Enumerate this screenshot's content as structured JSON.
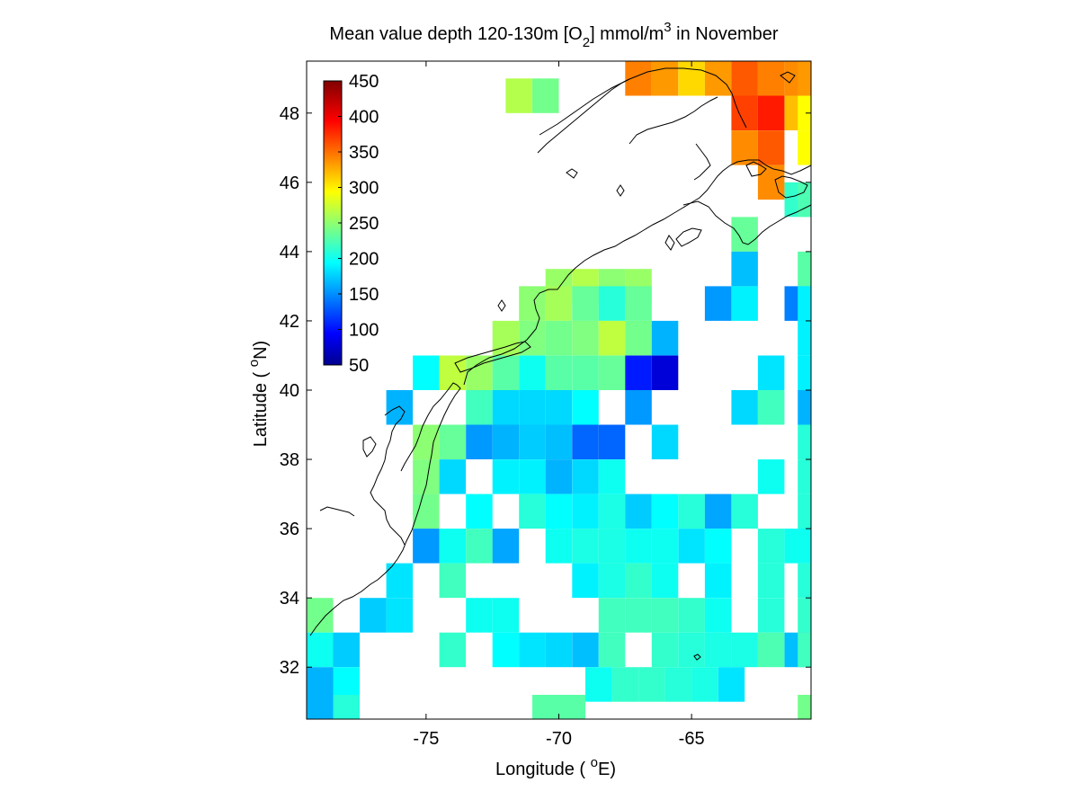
{
  "chart_data": {
    "type": "heatmap",
    "title": {
      "prefix": "Mean value depth 120-130m [O",
      "sub": "2",
      "middle": "] mmol/m",
      "sup": "3",
      "suffix": " in November"
    },
    "xlabel": {
      "prefix": "Longitude ( ",
      "sup": "o",
      "suffix": "E)"
    },
    "ylabel": {
      "prefix": "Latitude ( ",
      "sup": "o",
      "suffix": "N)"
    },
    "xlim": [
      -79.5,
      -60.5
    ],
    "ylim": [
      30.5,
      49.5
    ],
    "x_ticks": [
      -75,
      -70,
      -65
    ],
    "y_ticks": [
      32,
      34,
      36,
      38,
      40,
      42,
      44,
      46,
      48
    ],
    "cell_size_deg": 1,
    "colormap": "jet",
    "colorbar": {
      "min": 50,
      "max": 450,
      "ticks": [
        50,
        100,
        150,
        200,
        250,
        300,
        350,
        400,
        450
      ]
    },
    "cells": [
      [
        -67,
        49,
        350
      ],
      [
        -66,
        49,
        340
      ],
      [
        -65,
        49,
        315
      ],
      [
        -64,
        49,
        340
      ],
      [
        -63,
        49,
        365
      ],
      [
        -62,
        49,
        350
      ],
      [
        -61,
        49,
        345
      ],
      [
        -60.5,
        49,
        340
      ],
      [
        -71.5,
        48.5,
        270
      ],
      [
        -70.5,
        48.5,
        245
      ],
      [
        -63,
        48,
        375
      ],
      [
        -62,
        48,
        390
      ],
      [
        -61,
        48,
        325
      ],
      [
        -60.5,
        48,
        300
      ],
      [
        -63,
        47,
        345
      ],
      [
        -62,
        47,
        365
      ],
      [
        -60.5,
        47,
        300
      ],
      [
        -62,
        46,
        345
      ],
      [
        -61,
        45.5,
        220
      ],
      [
        -60.5,
        45.5,
        230
      ],
      [
        -63,
        44.5,
        240
      ],
      [
        -63,
        43.5,
        175
      ],
      [
        -60.5,
        43.5,
        235
      ],
      [
        -70,
        43,
        260
      ],
      [
        -69,
        43,
        270
      ],
      [
        -68,
        43,
        255
      ],
      [
        -67,
        43,
        260
      ],
      [
        -71,
        42.5,
        255
      ],
      [
        -70,
        42.5,
        265
      ],
      [
        -69,
        42.5,
        240
      ],
      [
        -68,
        42.5,
        215
      ],
      [
        -67,
        42.5,
        240
      ],
      [
        -64,
        42.5,
        160
      ],
      [
        -63,
        42.5,
        195
      ],
      [
        -61,
        42.5,
        150
      ],
      [
        -60.5,
        42.5,
        195
      ],
      [
        -72,
        41.5,
        265
      ],
      [
        -71,
        41.5,
        250
      ],
      [
        -70,
        41.5,
        245
      ],
      [
        -69,
        41.5,
        250
      ],
      [
        -68,
        41.5,
        275
      ],
      [
        -67,
        41.5,
        245
      ],
      [
        -66,
        41.5,
        170
      ],
      [
        -60.5,
        41.5,
        195
      ],
      [
        -75,
        40.5,
        200
      ],
      [
        -74,
        40.5,
        275
      ],
      [
        -73,
        40.5,
        260
      ],
      [
        -72,
        40.5,
        235
      ],
      [
        -71,
        40.5,
        205
      ],
      [
        -70,
        40.5,
        235
      ],
      [
        -69,
        40.5,
        235
      ],
      [
        -68,
        40.5,
        240
      ],
      [
        -67,
        40.5,
        110
      ],
      [
        -66,
        40.5,
        85
      ],
      [
        -62,
        40.5,
        190
      ],
      [
        -60.5,
        40.5,
        195
      ],
      [
        -76,
        39.5,
        170
      ],
      [
        -73,
        39.5,
        225
      ],
      [
        -72,
        39.5,
        185
      ],
      [
        -71,
        39.5,
        185
      ],
      [
        -70,
        39.5,
        185
      ],
      [
        -69,
        39.5,
        200
      ],
      [
        -67,
        39.5,
        160
      ],
      [
        -63,
        39.5,
        185
      ],
      [
        -62,
        39.5,
        225
      ],
      [
        -60.5,
        39.5,
        170
      ],
      [
        -75,
        38.5,
        255
      ],
      [
        -74,
        38.5,
        240
      ],
      [
        -73,
        38.5,
        160
      ],
      [
        -72,
        38.5,
        170
      ],
      [
        -71,
        38.5,
        180
      ],
      [
        -70,
        38.5,
        175
      ],
      [
        -69,
        38.5,
        140
      ],
      [
        -68,
        38.5,
        140
      ],
      [
        -66,
        38.5,
        185
      ],
      [
        -60.5,
        38.5,
        215
      ],
      [
        -75,
        37.5,
        250
      ],
      [
        -74,
        37.5,
        185
      ],
      [
        -72,
        37.5,
        195
      ],
      [
        -71,
        37.5,
        195
      ],
      [
        -70,
        37.5,
        170
      ],
      [
        -69,
        37.5,
        185
      ],
      [
        -68,
        37.5,
        205
      ],
      [
        -62,
        37.5,
        205
      ],
      [
        -60.5,
        37.5,
        215
      ],
      [
        -75,
        36.5,
        245
      ],
      [
        -73,
        36.5,
        200
      ],
      [
        -71,
        36.5,
        215
      ],
      [
        -70,
        36.5,
        200
      ],
      [
        -69,
        36.5,
        195
      ],
      [
        -68,
        36.5,
        210
      ],
      [
        -67,
        36.5,
        180
      ],
      [
        -66,
        36.5,
        200
      ],
      [
        -65,
        36.5,
        215
      ],
      [
        -64,
        36.5,
        165
      ],
      [
        -63,
        36.5,
        215
      ],
      [
        -60.5,
        36.5,
        215
      ],
      [
        -75,
        35.5,
        160
      ],
      [
        -74,
        35.5,
        205
      ],
      [
        -73,
        35.5,
        225
      ],
      [
        -72,
        35.5,
        165
      ],
      [
        -70,
        35.5,
        205
      ],
      [
        -69,
        35.5,
        210
      ],
      [
        -68,
        35.5,
        210
      ],
      [
        -67,
        35.5,
        205
      ],
      [
        -66,
        35.5,
        205
      ],
      [
        -65,
        35.5,
        190
      ],
      [
        -64,
        35.5,
        200
      ],
      [
        -62,
        35.5,
        215
      ],
      [
        -61,
        35.5,
        205
      ],
      [
        -60.5,
        35.5,
        205
      ],
      [
        -76,
        34.5,
        190
      ],
      [
        -74,
        34.5,
        225
      ],
      [
        -69,
        34.5,
        195
      ],
      [
        -68,
        34.5,
        210
      ],
      [
        -67,
        34.5,
        220
      ],
      [
        -66,
        34.5,
        205
      ],
      [
        -64,
        34.5,
        195
      ],
      [
        -62,
        34.5,
        215
      ],
      [
        -60.5,
        34.5,
        215
      ],
      [
        -79,
        33.5,
        245
      ],
      [
        -77,
        33.5,
        180
      ],
      [
        -76,
        33.5,
        190
      ],
      [
        -73,
        33.5,
        205
      ],
      [
        -72,
        33.5,
        205
      ],
      [
        -68,
        33.5,
        225
      ],
      [
        -67,
        33.5,
        225
      ],
      [
        -66,
        33.5,
        225
      ],
      [
        -65,
        33.5,
        220
      ],
      [
        -64,
        33.5,
        205
      ],
      [
        -62,
        33.5,
        215
      ],
      [
        -60.5,
        33.5,
        220
      ],
      [
        -79,
        32.5,
        205
      ],
      [
        -78,
        32.5,
        180
      ],
      [
        -74,
        32.5,
        220
      ],
      [
        -72,
        32.5,
        200
      ],
      [
        -71,
        32.5,
        190
      ],
      [
        -70,
        32.5,
        185
      ],
      [
        -69,
        32.5,
        175
      ],
      [
        -68,
        32.5,
        225
      ],
      [
        -66,
        32.5,
        220
      ],
      [
        -65,
        32.5,
        215
      ],
      [
        -64,
        32.5,
        210
      ],
      [
        -63,
        32.5,
        210
      ],
      [
        -62,
        32.5,
        230
      ],
      [
        -61,
        32.5,
        175
      ],
      [
        -60.5,
        32.5,
        225
      ],
      [
        -79,
        31.5,
        170
      ],
      [
        -78,
        31.5,
        200
      ],
      [
        -68.5,
        31.5,
        205
      ],
      [
        -67.5,
        31.5,
        220
      ],
      [
        -66.5,
        31.5,
        220
      ],
      [
        -65.5,
        31.5,
        215
      ],
      [
        -64.5,
        31.5,
        210
      ],
      [
        -63.5,
        31.5,
        190
      ],
      [
        -79,
        30.7,
        170
      ],
      [
        -78,
        30.7,
        215
      ],
      [
        -70.5,
        30.7,
        235
      ],
      [
        -69.5,
        30.7,
        235
      ],
      [
        -60.5,
        30.7,
        245
      ]
    ]
  }
}
